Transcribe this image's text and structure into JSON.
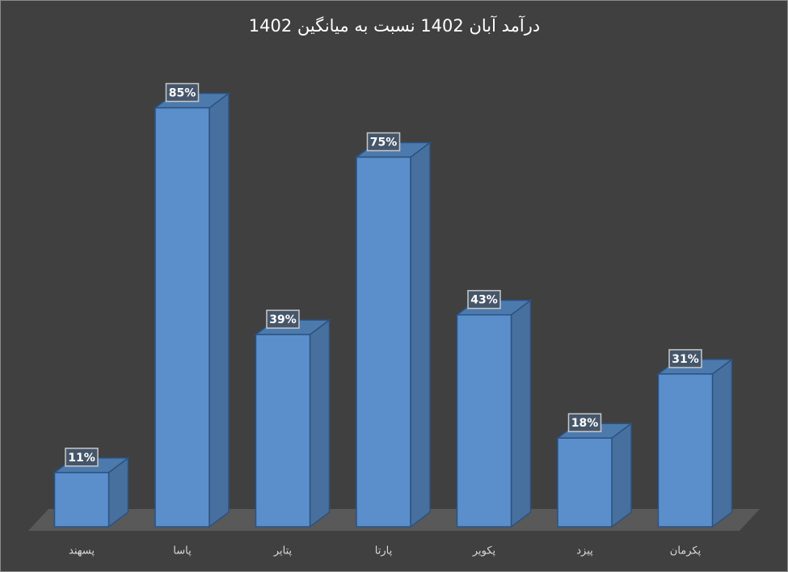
{
  "chart_data": {
    "type": "bar",
    "title": "درآمد آبان 1402 نسبت به میانگین 1402",
    "categories": [
      "پسهند",
      "پاسا",
      "پتایر",
      "پارتا",
      "پکویر",
      "پیزد",
      "پکرمان"
    ],
    "values": [
      11,
      85,
      39,
      75,
      43,
      18,
      31
    ],
    "value_labels": [
      "11%",
      "85%",
      "39%",
      "75%",
      "43%",
      "18%",
      "31%"
    ],
    "color": "#5b8fcb"
  }
}
